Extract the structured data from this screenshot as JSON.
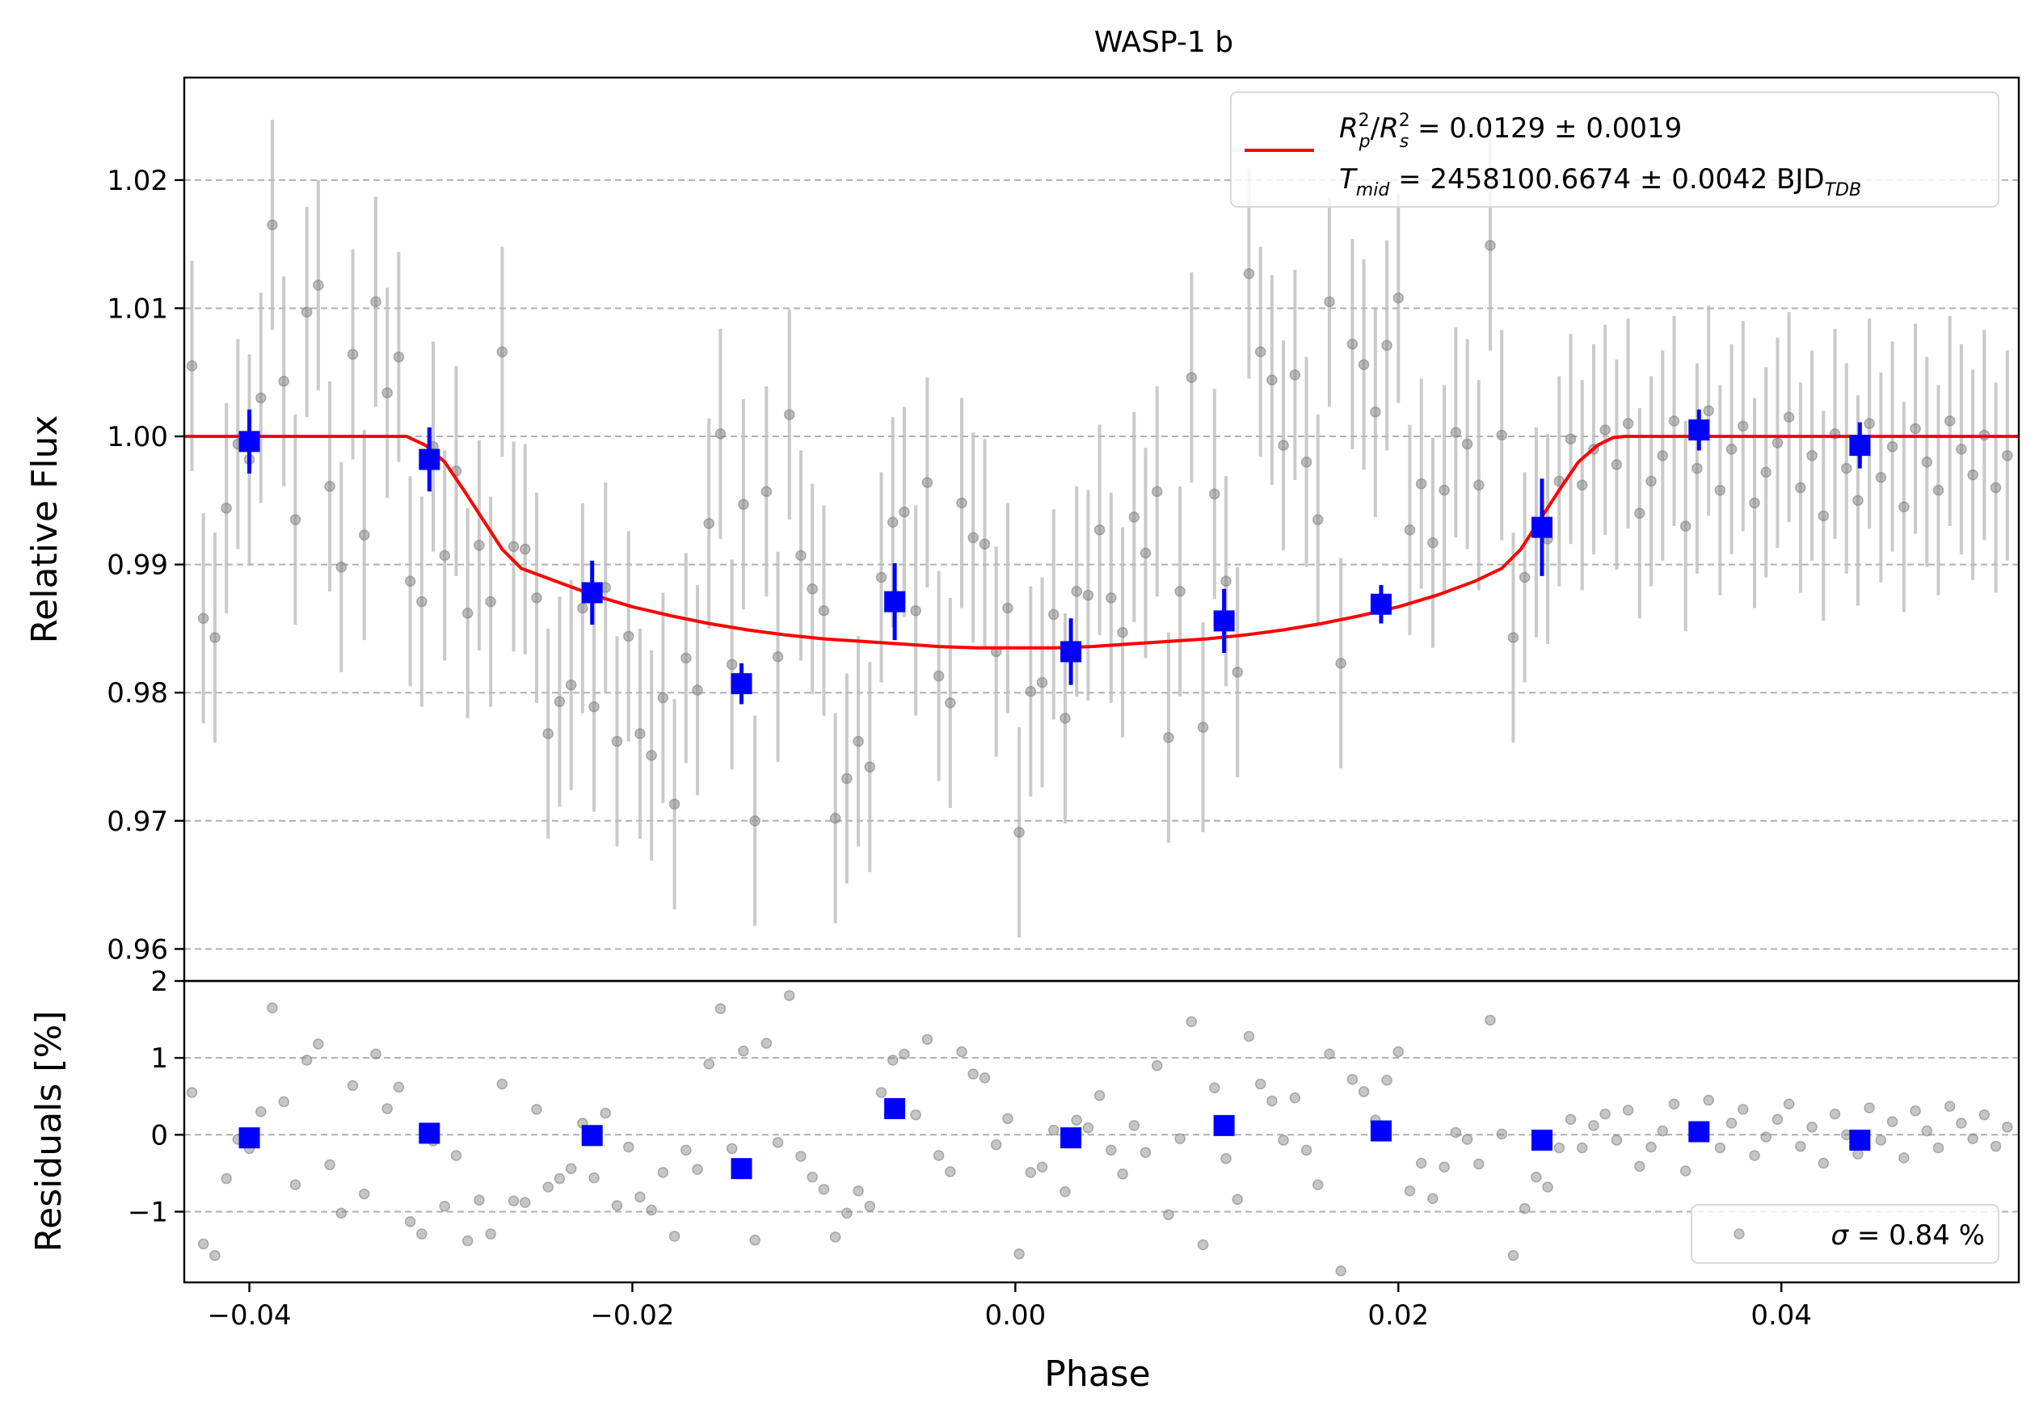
{
  "chart_data": {
    "type": "scatter",
    "title": "WASP-1 b",
    "xlabel": "Phase",
    "xlim": [
      -0.0434,
      0.0524
    ],
    "xticks": [
      "−0.04",
      "−0.02",
      "0.00",
      "0.02",
      "0.04"
    ],
    "xtick_values": [
      -0.04,
      -0.02,
      0.0,
      0.02,
      0.04
    ],
    "grid": true,
    "panels": {
      "flux": {
        "ylabel": "Relative Flux",
        "ylim": [
          0.9575,
          1.028
        ],
        "yticks": [
          "0.96",
          "0.97",
          "0.98",
          "0.99",
          "1.00",
          "1.01",
          "1.02"
        ],
        "ytick_values": [
          0.96,
          0.97,
          0.98,
          0.99,
          1.0,
          1.01,
          1.02
        ],
        "legend_position": "upper-right",
        "legend": {
          "line1": {
            "a": "R",
            "a_sup": "2",
            "a_sub": "p",
            "slash": "/",
            "b": "R",
            "b_sup": "2",
            "b_sub": "s",
            "text": " = 0.0129 ± 0.0019"
          },
          "line2": {
            "a": "T",
            "a_sub": "mid",
            "text": " = 2458100.6674 ± 0.0042 BJD",
            "unit_sub": "TDB"
          }
        },
        "model": {
          "color": "#ff0000",
          "x": [
            -0.0434,
            -0.0318,
            -0.0308,
            -0.0298,
            -0.0288,
            -0.0278,
            -0.0268,
            -0.0258,
            -0.024,
            -0.022,
            -0.02,
            -0.018,
            -0.016,
            -0.014,
            -0.012,
            -0.01,
            -0.008,
            -0.006,
            -0.004,
            -0.002,
            0.0,
            0.002,
            0.004,
            0.006,
            0.008,
            0.01,
            0.012,
            0.014,
            0.016,
            0.018,
            0.02,
            0.022,
            0.024,
            0.0254,
            0.0264,
            0.0274,
            0.0284,
            0.0294,
            0.0304,
            0.0312,
            0.0318,
            0.0524
          ],
          "y": [
            1.0,
            1.0,
            0.9993,
            0.998,
            0.9958,
            0.9935,
            0.9912,
            0.9897,
            0.9887,
            0.9876,
            0.9867,
            0.986,
            0.9854,
            0.9849,
            0.9845,
            0.9842,
            0.984,
            0.9838,
            0.9836,
            0.9835,
            0.9835,
            0.9835,
            0.9836,
            0.9838,
            0.984,
            0.9842,
            0.9845,
            0.9849,
            0.9854,
            0.986,
            0.9867,
            0.9876,
            0.9887,
            0.9897,
            0.9912,
            0.9935,
            0.9958,
            0.998,
            0.9993,
            0.9999,
            1.0,
            1.0
          ]
        },
        "raw": {
          "color": "#808080",
          "x": [
            -0.043,
            -0.0424,
            -0.0418,
            -0.0412,
            -0.0406,
            -0.04,
            -0.0394,
            -0.0388,
            -0.0382,
            -0.0376,
            -0.037,
            -0.0364,
            -0.0358,
            -0.0352,
            -0.0346,
            -0.034,
            -0.0334,
            -0.0328,
            -0.0322,
            -0.0316,
            -0.031,
            -0.0304,
            -0.0298,
            -0.0292,
            -0.0286,
            -0.028,
            -0.0274,
            -0.0268,
            -0.0262,
            -0.0256,
            -0.025,
            -0.0244,
            -0.0238,
            -0.0232,
            -0.0226,
            -0.022,
            -0.0214,
            -0.0208,
            -0.0202,
            -0.0196,
            -0.019,
            -0.0184,
            -0.0178,
            -0.0172,
            -0.0166,
            -0.016,
            -0.0154,
            -0.0148,
            -0.0142,
            -0.0136,
            -0.013,
            -0.0124,
            -0.0118,
            -0.0112,
            -0.0106,
            -0.01,
            -0.0094,
            -0.0088,
            -0.0082,
            -0.0076,
            -0.007,
            -0.0064,
            -0.0058,
            -0.0052,
            -0.0046,
            -0.004,
            -0.0034,
            -0.0028,
            -0.0022,
            -0.0016,
            -0.001,
            -0.0004,
            0.0002,
            0.0008,
            0.0014,
            0.002,
            0.0026,
            0.0032,
            0.0038,
            0.0044,
            0.005,
            0.0056,
            0.0062,
            0.0068,
            0.0074,
            0.008,
            0.0086,
            0.0092,
            0.0098,
            0.0104,
            0.011,
            0.0116,
            0.0122,
            0.0128,
            0.0134,
            0.014,
            0.0146,
            0.0152,
            0.0158,
            0.0164,
            0.017,
            0.0176,
            0.0182,
            0.0188,
            0.0194,
            0.02,
            0.0206,
            0.0212,
            0.0218,
            0.0224,
            0.023,
            0.0236,
            0.0242,
            0.0248,
            0.0254,
            0.026,
            0.0266,
            0.0272,
            0.0278,
            0.0284,
            0.029,
            0.0296,
            0.0302,
            0.0308,
            0.0314,
            0.032,
            0.0326,
            0.0332,
            0.0338,
            0.0344,
            0.035,
            0.0356,
            0.0362,
            0.0368,
            0.0374,
            0.038,
            0.0386,
            0.0392,
            0.0398,
            0.0404,
            0.041,
            0.0416,
            0.0422,
            0.0428,
            0.0434,
            0.044,
            0.0446,
            0.0452,
            0.0458,
            0.0464,
            0.047,
            0.0476,
            0.0482,
            0.0488,
            0.0494,
            0.05,
            0.0506,
            0.0512,
            0.0518
          ],
          "y": [
            1.0055,
            0.9858,
            0.9843,
            0.9944,
            0.9994,
            0.9982,
            1.003,
            1.0165,
            1.0043,
            0.9935,
            1.0097,
            1.0118,
            0.9961,
            0.9898,
            1.0064,
            0.9923,
            1.0105,
            1.0034,
            1.0062,
            0.9887,
            0.9871,
            0.9992,
            0.9907,
            0.9973,
            0.9862,
            0.9915,
            0.9871,
            1.0066,
            0.9914,
            0.9912,
            0.9874,
            0.9768,
            0.9793,
            0.9806,
            0.9866,
            0.9789,
            0.9882,
            0.9762,
            0.9844,
            0.9768,
            0.9751,
            0.9796,
            0.9713,
            0.9827,
            0.9802,
            0.9932,
            1.0002,
            0.9822,
            0.9947,
            0.97,
            0.9957,
            0.9828,
            1.0017,
            0.9907,
            0.9881,
            0.9864,
            0.9702,
            0.9733,
            0.9762,
            0.9742,
            0.989,
            0.9933,
            0.9941,
            0.9864,
            0.9964,
            0.9813,
            0.9792,
            0.9948,
            0.9921,
            0.9916,
            0.9832,
            0.9866,
            0.9691,
            0.9801,
            0.9808,
            0.9861,
            0.978,
            0.9879,
            0.9876,
            0.9927,
            0.9874,
            0.9847,
            0.9937,
            0.9909,
            0.9957,
            0.9765,
            0.9879,
            1.0046,
            0.9773,
            0.9955,
            0.9887,
            0.9816,
            1.0127,
            1.0066,
            1.0044,
            0.9993,
            1.0048,
            0.998,
            0.9935,
            1.0105,
            0.9823,
            1.0072,
            1.0056,
            1.0019,
            1.0071,
            1.0108,
            0.9927,
            0.9963,
            0.9917,
            0.9958,
            1.0003,
            0.9994,
            0.9962,
            1.0149,
            1.0001,
            0.9843,
            0.989,
            0.9925,
            0.992,
            0.9965,
            0.9998,
            0.9962,
            0.999,
            1.0005,
            0.9978,
            1.001,
            0.994,
            0.9965,
            0.9985,
            1.0012,
            0.993,
            0.9975,
            1.002,
            0.9958,
            0.999,
            1.0008,
            0.9948,
            0.9972,
            0.9995,
            1.0015,
            0.996,
            0.9985,
            0.9938,
            1.0002,
            0.9975,
            0.995,
            1.001,
            0.9968,
            0.9992,
            0.9945,
            1.0006,
            0.998,
            0.9958,
            1.0012,
            0.999,
            0.997,
            1.0001,
            0.996,
            0.9985
          ],
          "yerr": 0.0082
        },
        "binned": {
          "color": "#0000ff",
          "x": [
            -0.04,
            -0.0306,
            -0.0221,
            -0.0143,
            -0.0063,
            0.0029,
            0.0109,
            0.0191,
            0.0275,
            0.0357,
            0.0441
          ],
          "y": [
            0.9996,
            0.9982,
            0.9878,
            0.9807,
            0.9871,
            0.9832,
            0.9856,
            0.9869,
            0.9929,
            1.0005,
            0.9993
          ],
          "yerr": [
            0.0025,
            0.0025,
            0.0025,
            0.0016,
            0.003,
            0.0026,
            0.0025,
            0.0015,
            0.0038,
            0.0016,
            0.0018
          ]
        }
      },
      "residuals": {
        "ylabel": "Residuals [%]",
        "ylim": [
          -1.92,
          2.0
        ],
        "yticks": [
          "−1",
          "0",
          "1",
          "2"
        ],
        "ytick_values": [
          -1,
          0,
          1,
          2
        ],
        "legend_position": "lower-right",
        "legend_text": " = 0.84 %",
        "legend_symbol": "σ",
        "raw_y": [
          0.55,
          -1.42,
          -1.57,
          -0.57,
          -0.06,
          -0.18,
          0.3,
          1.65,
          0.43,
          -0.65,
          0.97,
          1.18,
          -0.39,
          -1.02,
          0.64,
          -0.77,
          1.05,
          0.34,
          0.62,
          -1.13,
          -1.29,
          -0.08,
          -0.93,
          -0.27,
          -1.38,
          -0.85,
          -1.29,
          0.66,
          -0.86,
          -0.88,
          0.33,
          -0.68,
          -0.57,
          -0.44,
          0.15,
          -0.56,
          0.28,
          -0.92,
          -0.16,
          -0.81,
          -0.98,
          -0.49,
          -1.32,
          -0.2,
          -0.45,
          0.92,
          1.64,
          -0.18,
          1.09,
          -1.37,
          1.19,
          -0.1,
          1.81,
          -0.28,
          -0.55,
          -0.71,
          -1.33,
          -1.02,
          -0.73,
          -0.93,
          0.55,
          0.97,
          1.05,
          0.26,
          1.24,
          -0.27,
          -0.48,
          1.08,
          0.79,
          0.74,
          -0.13,
          0.21,
          -1.55,
          -0.49,
          -0.42,
          0.06,
          -0.74,
          0.19,
          0.09,
          0.51,
          -0.2,
          -0.51,
          0.12,
          -0.23,
          0.9,
          -1.04,
          -0.05,
          1.47,
          -1.43,
          0.61,
          -0.31,
          -0.84,
          1.28,
          0.66,
          0.44,
          -0.07,
          0.48,
          -0.2,
          -0.65,
          1.05,
          -1.77,
          0.72,
          0.56,
          0.19,
          0.71,
          1.08,
          -0.73,
          -0.37,
          -0.83,
          -0.42,
          0.03,
          -0.06,
          -0.38,
          1.49,
          0.01,
          -1.57,
          -0.96,
          -0.55,
          -0.68,
          -0.17,
          0.2,
          -0.17,
          0.12,
          0.27,
          -0.07,
          0.32,
          -0.41,
          -0.16,
          0.05,
          0.4,
          -0.47,
          0.0,
          0.45,
          -0.17,
          0.15,
          0.33,
          -0.27,
          -0.03,
          0.2,
          0.4,
          -0.15,
          0.1,
          -0.37,
          0.27,
          0.0,
          -0.25,
          0.35,
          -0.07,
          0.17,
          -0.3,
          0.31,
          0.05,
          -0.17,
          0.37,
          0.15,
          -0.05,
          0.26,
          -0.15,
          0.1
        ],
        "binned_y": [
          -0.04,
          0.02,
          -0.01,
          -0.44,
          0.34,
          -0.04,
          0.12,
          0.05,
          -0.07,
          0.04,
          -0.07
        ]
      }
    }
  }
}
